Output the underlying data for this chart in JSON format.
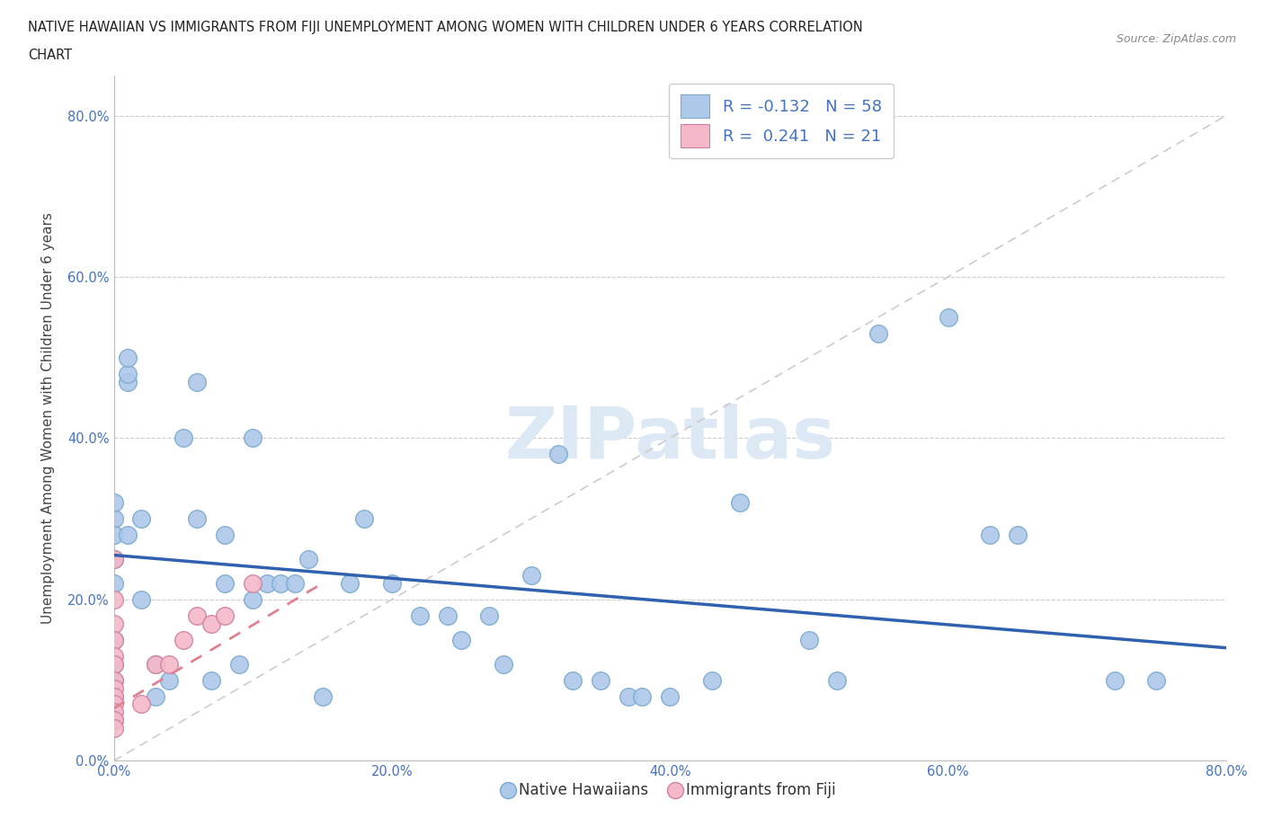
{
  "title_line1": "NATIVE HAWAIIAN VS IMMIGRANTS FROM FIJI UNEMPLOYMENT AMONG WOMEN WITH CHILDREN UNDER 6 YEARS CORRELATION",
  "title_line2": "CHART",
  "source": "Source: ZipAtlas.com",
  "ylabel": "Unemployment Among Women with Children Under 6 years",
  "xlim": [
    0,
    0.8
  ],
  "ylim": [
    0,
    0.85
  ],
  "watermark": "ZIPatlas",
  "blue_color": "#adc8e8",
  "pink_color": "#f5b8c8",
  "trend_blue_color": "#3060b0",
  "trend_pink_color": "#e08090",
  "grid_color": "#cccccc",
  "native_hawaiians_x": [
    0.0,
    0.0,
    0.0,
    0.0,
    0.0,
    0.0,
    0.0,
    0.0,
    0.0,
    0.0,
    0.01,
    0.01,
    0.01,
    0.01,
    0.02,
    0.02,
    0.03,
    0.03,
    0.04,
    0.05,
    0.06,
    0.06,
    0.07,
    0.08,
    0.08,
    0.09,
    0.1,
    0.1,
    0.11,
    0.12,
    0.13,
    0.14,
    0.15,
    0.17,
    0.18,
    0.2,
    0.22,
    0.24,
    0.25,
    0.27,
    0.28,
    0.3,
    0.32,
    0.33,
    0.35,
    0.37,
    0.38,
    0.4,
    0.43,
    0.45,
    0.5,
    0.52,
    0.55,
    0.6,
    0.63,
    0.65,
    0.72,
    0.75
  ],
  "native_hawaiians_y": [
    0.3,
    0.32,
    0.28,
    0.25,
    0.22,
    0.15,
    0.12,
    0.1,
    0.08,
    0.05,
    0.47,
    0.48,
    0.5,
    0.28,
    0.3,
    0.2,
    0.12,
    0.08,
    0.1,
    0.4,
    0.47,
    0.3,
    0.1,
    0.28,
    0.22,
    0.12,
    0.4,
    0.2,
    0.22,
    0.22,
    0.22,
    0.25,
    0.08,
    0.22,
    0.3,
    0.22,
    0.18,
    0.18,
    0.15,
    0.18,
    0.12,
    0.23,
    0.38,
    0.1,
    0.1,
    0.08,
    0.08,
    0.08,
    0.1,
    0.32,
    0.15,
    0.1,
    0.53,
    0.55,
    0.28,
    0.28,
    0.1,
    0.1
  ],
  "fiji_x": [
    0.0,
    0.0,
    0.0,
    0.0,
    0.0,
    0.0,
    0.0,
    0.0,
    0.0,
    0.0,
    0.0,
    0.0,
    0.0,
    0.02,
    0.03,
    0.04,
    0.05,
    0.06,
    0.07,
    0.08,
    0.1
  ],
  "fiji_y": [
    0.25,
    0.2,
    0.17,
    0.15,
    0.13,
    0.12,
    0.1,
    0.09,
    0.08,
    0.07,
    0.06,
    0.05,
    0.04,
    0.07,
    0.12,
    0.12,
    0.15,
    0.18,
    0.17,
    0.18,
    0.22
  ],
  "trend_blue_x0": 0.0,
  "trend_blue_y0": 0.255,
  "trend_blue_x1": 0.8,
  "trend_blue_y1": 0.14,
  "trend_pink_x0": 0.0,
  "trend_pink_y0": 0.065,
  "trend_pink_x1": 0.15,
  "trend_pink_y1": 0.22
}
